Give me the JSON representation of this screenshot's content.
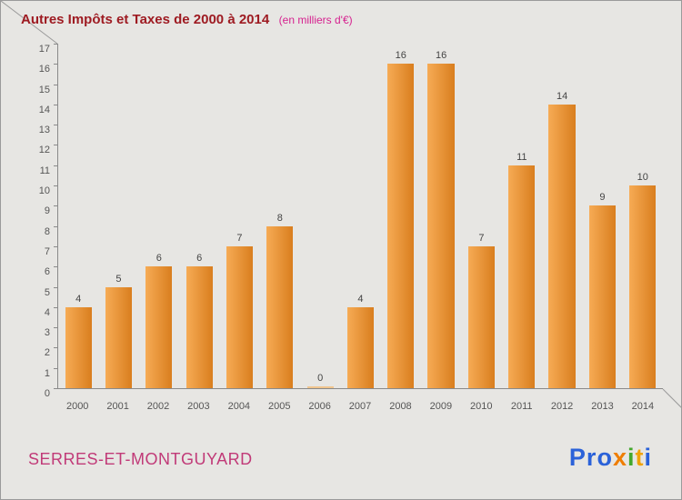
{
  "header": {
    "title": "Autres Impôts et Taxes de 2000 à 2014",
    "subtitle": "(en milliers d'€)"
  },
  "chart_data": {
    "type": "bar",
    "title": "Autres Impôts et Taxes de 2000 à 2014",
    "subtitle": "(en milliers d'€)",
    "categories": [
      "2000",
      "2001",
      "2002",
      "2003",
      "2004",
      "2005",
      "2006",
      "2007",
      "2008",
      "2009",
      "2010",
      "2011",
      "2012",
      "2013",
      "2014"
    ],
    "values": [
      4,
      5,
      6,
      6,
      7,
      8,
      0,
      4,
      16,
      16,
      7,
      11,
      14,
      9,
      10
    ],
    "xlabel": "",
    "ylabel": "",
    "ylim": [
      0,
      17
    ],
    "ytick_step": 1,
    "grid": false,
    "legend": false,
    "bar_color_light": "#f6ab55",
    "bar_color_dark": "#d97e1e"
  },
  "footer": {
    "commune": "SERRES-ET-MONTGUYARD",
    "logo_letters": [
      {
        "ch": "P",
        "color": "#2b62d9"
      },
      {
        "ch": "r",
        "color": "#2b62d9"
      },
      {
        "ch": "o",
        "color": "#2b62d9"
      },
      {
        "ch": "x",
        "color": "#ef7d00"
      },
      {
        "ch": "i",
        "color": "#43a82c"
      },
      {
        "ch": "t",
        "color": "#f0a30a"
      },
      {
        "ch": "i",
        "color": "#2b62d9"
      }
    ]
  },
  "colors": {
    "background": "#e7e6e3",
    "title": "#9e1b22",
    "subtitle": "#d6218f",
    "axis": "#8a8a8a",
    "labels": "#555555",
    "commune": "#c13a78"
  }
}
